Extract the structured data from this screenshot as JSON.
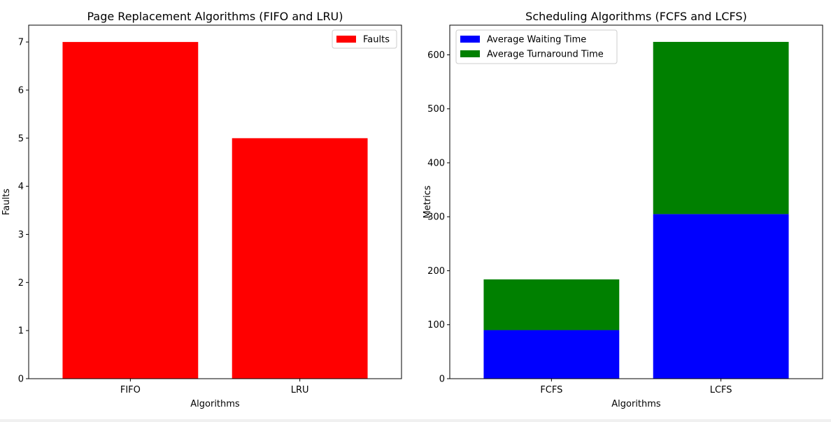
{
  "chart_data": [
    {
      "type": "bar",
      "title": "Page Replacement Algorithms (FIFO and LRU)",
      "xlabel": "Algorithms",
      "ylabel": "Faults",
      "categories": [
        "FIFO",
        "LRU"
      ],
      "series": [
        {
          "name": "Faults",
          "values": [
            7,
            5
          ],
          "color": "#ff0000"
        }
      ],
      "ylim": [
        0,
        7.35
      ],
      "yticks": [
        0,
        1,
        2,
        3,
        4,
        5,
        6,
        7
      ],
      "legend": "top-right",
      "stacked": false
    },
    {
      "type": "bar",
      "title": "Scheduling Algorithms (FCFS and LCFS)",
      "xlabel": "Algorithms",
      "ylabel": "Metrics",
      "categories": [
        "FCFS",
        "LCFS"
      ],
      "series": [
        {
          "name": "Average Waiting Time",
          "values": [
            90,
            305
          ],
          "color": "#0000ff"
        },
        {
          "name": "Average Turnaround Time",
          "values": [
            94,
            319
          ],
          "color": "#008000"
        }
      ],
      "ylim": [
        0,
        655
      ],
      "yticks": [
        0,
        100,
        200,
        300,
        400,
        500,
        600
      ],
      "legend": "top-left",
      "stacked": true
    }
  ]
}
